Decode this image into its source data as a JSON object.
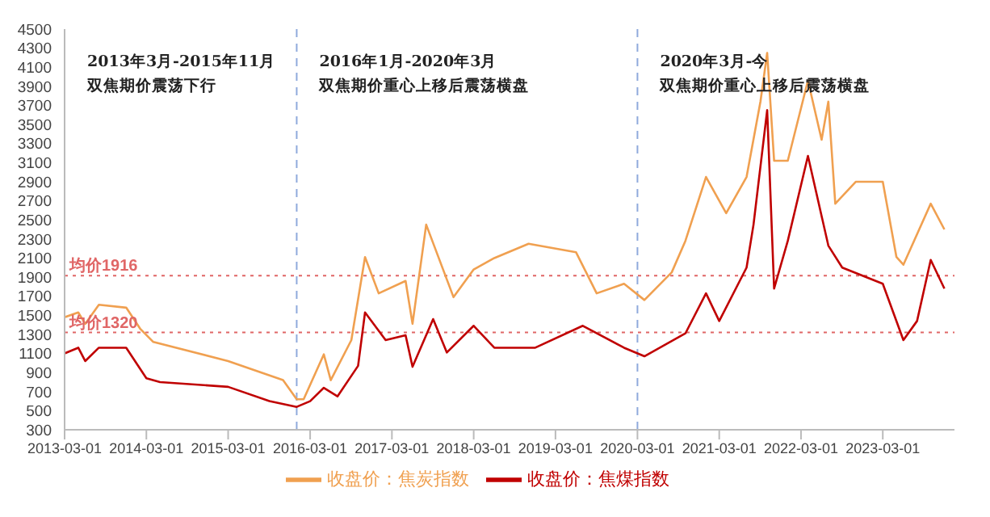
{
  "chart_data": {
    "type": "line",
    "x": [
      "2013-03",
      "2013-05",
      "2013-06",
      "2013-08",
      "2013-12",
      "2014-02",
      "2014-04",
      "2015-03",
      "2015-11",
      "2016-01",
      "2016-02",
      "2016-05",
      "2016-06",
      "2016-09",
      "2016-11",
      "2017-01",
      "2017-05",
      "2017-06",
      "2017-08",
      "2017-12",
      "2018-03",
      "2018-06",
      "2018-11",
      "2019-06",
      "2019-09",
      "2020-01",
      "2020-04",
      "2020-08",
      "2020-10",
      "2021-01",
      "2021-04",
      "2021-07",
      "2021-09",
      "2021-10",
      "2021-11",
      "2022-01",
      "2022-04",
      "2022-06",
      "2022-07",
      "2022-08",
      "2022-11",
      "2023-03",
      "2023-05",
      "2023-06",
      "2023-10",
      "2023-12"
    ],
    "series": [
      {
        "name": "收盘价：焦煤指数",
        "color": "#c00000",
        "x": [
          "2013-03",
          "2013-05",
          "2013-06",
          "2013-08",
          "2013-12",
          "2014-03",
          "2014-05",
          "2015-03",
          "2015-09",
          "2016-01",
          "2016-03",
          "2016-05",
          "2016-07",
          "2016-10",
          "2016-11",
          "2017-02",
          "2017-05",
          "2017-06",
          "2017-09",
          "2017-11",
          "2018-03",
          "2018-06",
          "2018-12",
          "2019-07",
          "2020-01",
          "2020-04",
          "2020-10",
          "2021-01",
          "2021-03",
          "2021-07",
          "2021-08",
          "2021-10",
          "2021-11",
          "2022-01",
          "2022-04",
          "2022-07",
          "2022-09",
          "2023-03",
          "2023-06",
          "2023-08",
          "2023-10",
          "2023-12"
        ],
        "values": [
          1100,
          1160,
          1020,
          1160,
          1160,
          840,
          800,
          750,
          600,
          540,
          600,
          740,
          650,
          970,
          1530,
          1240,
          1290,
          960,
          1460,
          1110,
          1390,
          1160,
          1160,
          1390,
          1160,
          1070,
          1310,
          1730,
          1440,
          2000,
          2450,
          3650,
          1780,
          2280,
          3170,
          2230,
          2000,
          1830,
          1240,
          1440,
          2080,
          1780
        ]
      },
      {
        "name": "收盘价：焦炭指数",
        "color": "#f0a050",
        "values": [
          1480,
          1530,
          1410,
          1610,
          1580,
          1360,
          1220,
          1020,
          820,
          620,
          620,
          1090,
          820,
          1240,
          2110,
          1730,
          1860,
          1410,
          2450,
          1690,
          1980,
          2100,
          2250,
          2160,
          1730,
          1830,
          1660,
          1950,
          2280,
          2950,
          2570,
          2950,
          3740,
          4250,
          3120,
          3120,
          3960,
          3340,
          3740,
          2670,
          2900,
          2900,
          2110,
          2030,
          2670,
          2400
        ]
      }
    ],
    "xlim": [
      "2013-03-01",
      "2024-01-15"
    ],
    "xticks": [
      "2013-03-01",
      "2014-03-01",
      "2015-03-01",
      "2016-03-01",
      "2017-03-01",
      "2018-03-01",
      "2019-03-01",
      "2020-03-01",
      "2021-03-01",
      "2022-03-01",
      "2023-03-01"
    ],
    "ylim": [
      300,
      4500
    ],
    "yticks": [
      300,
      500,
      700,
      900,
      1100,
      1300,
      1500,
      1700,
      1900,
      2100,
      2300,
      2500,
      2700,
      2900,
      3100,
      3300,
      3500,
      3700,
      3900,
      4100,
      4300,
      4500
    ],
    "ref_lines": [
      {
        "axis": "y",
        "value": 1916,
        "label": "均价1916",
        "color": "#e06666",
        "line_style": "dotted"
      },
      {
        "axis": "y",
        "value": 1320,
        "label": "均价1320",
        "color": "#e06666",
        "line_style": "dotted"
      },
      {
        "axis": "x",
        "value": "2016-01-01",
        "color": "#8faadc",
        "line_style": "dashed"
      },
      {
        "axis": "x",
        "value": "2020-03-01",
        "color": "#8faadc",
        "line_style": "dashed"
      }
    ],
    "annotations": [
      "2013年3月-2015年11月",
      "双焦期价震荡下行",
      "2016年1月-2020年3月",
      "双焦期价重心上移后震荡横盘",
      "2020年3月-今",
      "双焦期价重心上移后震荡横盘"
    ],
    "legend": "bottom",
    "marker": "none",
    "line_style": "solid"
  }
}
